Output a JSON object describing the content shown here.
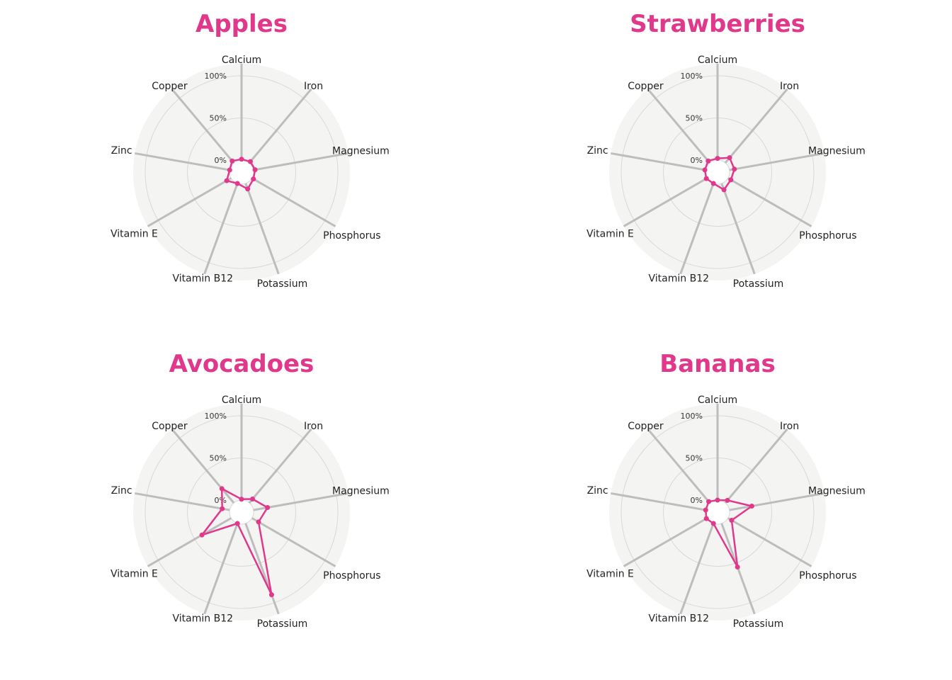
{
  "colors": {
    "accent": "#e0388a",
    "background": "#f4f4f3",
    "spoke": "#bdbdbd",
    "grid": "#d8d8d8"
  },
  "chart_data": [
    {
      "type": "radar",
      "title": "Apples",
      "axes": [
        "Calcium",
        "Iron",
        "Magnesium",
        "Phosphorus",
        "Potassium",
        "Vitamin B12",
        "Vitamin E",
        "Zinc",
        "Copper"
      ],
      "values": [
        1,
        2,
        2,
        2,
        7,
        0,
        6,
        0,
        3
      ],
      "range": [
        0,
        100
      ],
      "ticks": [
        "0%",
        "50%",
        "100%"
      ]
    },
    {
      "type": "radar",
      "title": "Strawberries",
      "axes": [
        "Calcium",
        "Iron",
        "Magnesium",
        "Phosphorus",
        "Potassium",
        "Vitamin B12",
        "Vitamin E",
        "Zinc",
        "Copper"
      ],
      "values": [
        2,
        8,
        6,
        4,
        8,
        0,
        1,
        1,
        3
      ],
      "range": [
        0,
        100
      ],
      "ticks": [
        "0%",
        "50%",
        "100%"
      ]
    },
    {
      "type": "radar",
      "title": "Avocadoes",
      "axes": [
        "Calcium",
        "Iron",
        "Magnesium",
        "Phosphorus",
        "Potassium",
        "Vitamin B12",
        "Vitamin E",
        "Zinc",
        "Copper"
      ],
      "values": [
        1,
        6,
        17,
        9,
        90,
        0,
        40,
        9,
        22
      ],
      "range": [
        0,
        100
      ],
      "ticks": [
        "0%",
        "50%",
        "100%"
      ]
    },
    {
      "type": "radar",
      "title": "Bananas",
      "axes": [
        "Calcium",
        "Iron",
        "Magnesium",
        "Phosphorus",
        "Potassium",
        "Vitamin B12",
        "Vitamin E",
        "Zinc",
        "Copper"
      ],
      "values": [
        0,
        4,
        27,
        5,
        55,
        0,
        1,
        0,
        2
      ],
      "range": [
        0,
        100
      ],
      "ticks": [
        "0%",
        "50%",
        "100%"
      ]
    }
  ]
}
